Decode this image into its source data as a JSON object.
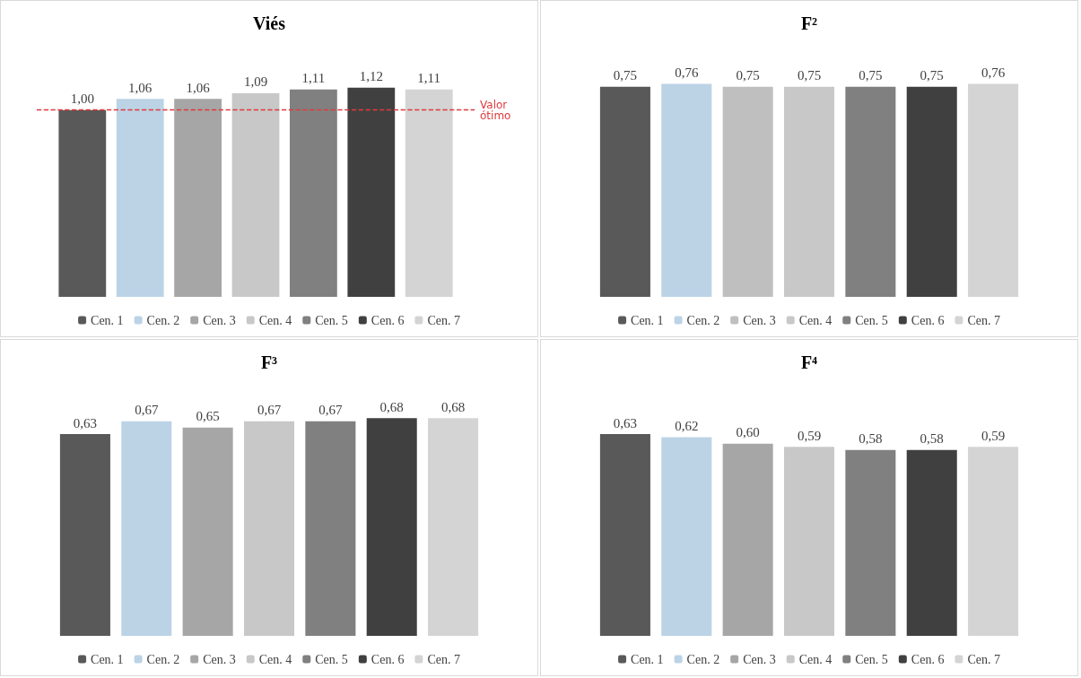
{
  "chart_data": [
    {
      "type": "bar",
      "title": "Viés",
      "categories": [
        null
      ],
      "legend": "bottom",
      "ref_lines": [
        {
          "axis": "y",
          "value": 1,
          "label": "Valor ótimo",
          "color": "#e0393e",
          "line_style": "dashed"
        }
      ],
      "series": [
        {
          "name": "Cen. 1",
          "color": "#595959",
          "values": [
            1.0
          ],
          "value_labels": [
            "1,00"
          ]
        },
        {
          "name": "Cen. 2",
          "color": "#bcd3e6",
          "values": [
            1.06
          ],
          "value_labels": [
            "1,06"
          ]
        },
        {
          "name": "Cen. 3",
          "color": "#a6a6a6",
          "values": [
            1.06
          ],
          "value_labels": [
            "1,06"
          ]
        },
        {
          "name": "Cen. 4",
          "color": "#c8c8c8",
          "values": [
            1.09
          ],
          "value_labels": [
            "1,09"
          ]
        },
        {
          "name": "Cen. 5",
          "color": "#808080",
          "values": [
            1.11
          ],
          "value_labels": [
            "1,11"
          ]
        },
        {
          "name": "Cen. 6",
          "color": "#404040",
          "values": [
            1.12
          ],
          "value_labels": [
            "1,12"
          ]
        },
        {
          "name": "Cen. 7",
          "color": "#d4d4d4",
          "values": [
            1.11
          ],
          "value_labels": [
            "1,11"
          ]
        }
      ]
    },
    {
      "type": "bar",
      "title": "F²",
      "categories": [
        null
      ],
      "legend": "bottom",
      "series": [
        {
          "name": "Cen. 1",
          "color": "#595959",
          "values": [
            0.75
          ],
          "value_labels": [
            "0,75"
          ]
        },
        {
          "name": "Cen. 2",
          "color": "#bcd3e6",
          "values": [
            0.76
          ],
          "value_labels": [
            "0,76"
          ]
        },
        {
          "name": "Cen. 3",
          "color": "#bfbfbf",
          "values": [
            0.75
          ],
          "value_labels": [
            "0,75"
          ]
        },
        {
          "name": "Cen. 4",
          "color": "#c8c8c8",
          "values": [
            0.75
          ],
          "value_labels": [
            "0,75"
          ]
        },
        {
          "name": "Cen. 5",
          "color": "#808080",
          "values": [
            0.75
          ],
          "value_labels": [
            "0,75"
          ]
        },
        {
          "name": "Cen. 6",
          "color": "#404040",
          "values": [
            0.75
          ],
          "value_labels": [
            "0,75"
          ]
        },
        {
          "name": "Cen. 7",
          "color": "#d4d4d4",
          "values": [
            0.76
          ],
          "value_labels": [
            "0,76"
          ]
        }
      ]
    },
    {
      "type": "bar",
      "title": "F³",
      "categories": [
        null
      ],
      "legend": "bottom",
      "series": [
        {
          "name": "Cen. 1",
          "color": "#595959",
          "values": [
            0.63
          ],
          "value_labels": [
            "0,63"
          ]
        },
        {
          "name": "Cen. 2",
          "color": "#bcd3e6",
          "values": [
            0.67
          ],
          "value_labels": [
            "0,67"
          ]
        },
        {
          "name": "Cen. 3",
          "color": "#a6a6a6",
          "values": [
            0.65
          ],
          "value_labels": [
            "0,65"
          ]
        },
        {
          "name": "Cen. 4",
          "color": "#c8c8c8",
          "values": [
            0.67
          ],
          "value_labels": [
            "0,67"
          ]
        },
        {
          "name": "Cen. 5",
          "color": "#808080",
          "values": [
            0.67
          ],
          "value_labels": [
            "0,67"
          ]
        },
        {
          "name": "Cen. 6",
          "color": "#404040",
          "values": [
            0.68
          ],
          "value_labels": [
            "0,68"
          ]
        },
        {
          "name": "Cen. 7",
          "color": "#d4d4d4",
          "values": [
            0.68
          ],
          "value_labels": [
            "0,68"
          ]
        }
      ]
    },
    {
      "type": "bar",
      "title": "F⁴",
      "categories": [
        null
      ],
      "legend": "bottom",
      "series": [
        {
          "name": "Cen. 1",
          "color": "#595959",
          "values": [
            0.63
          ],
          "value_labels": [
            "0,63"
          ]
        },
        {
          "name": "Cen. 2",
          "color": "#bcd3e6",
          "values": [
            0.62
          ],
          "value_labels": [
            "0,62"
          ]
        },
        {
          "name": "Cen. 3",
          "color": "#a6a6a6",
          "values": [
            0.6
          ],
          "value_labels": [
            "0,60"
          ]
        },
        {
          "name": "Cen. 4",
          "color": "#c8c8c8",
          "values": [
            0.59
          ],
          "value_labels": [
            "0,59"
          ]
        },
        {
          "name": "Cen. 5",
          "color": "#808080",
          "values": [
            0.58
          ],
          "value_labels": [
            "0,58"
          ]
        },
        {
          "name": "Cen. 6",
          "color": "#404040",
          "values": [
            0.58
          ],
          "value_labels": [
            "0,58"
          ]
        },
        {
          "name": "Cen. 7",
          "color": "#d4d4d4",
          "values": [
            0.59
          ],
          "value_labels": [
            "0,59"
          ]
        }
      ]
    }
  ]
}
